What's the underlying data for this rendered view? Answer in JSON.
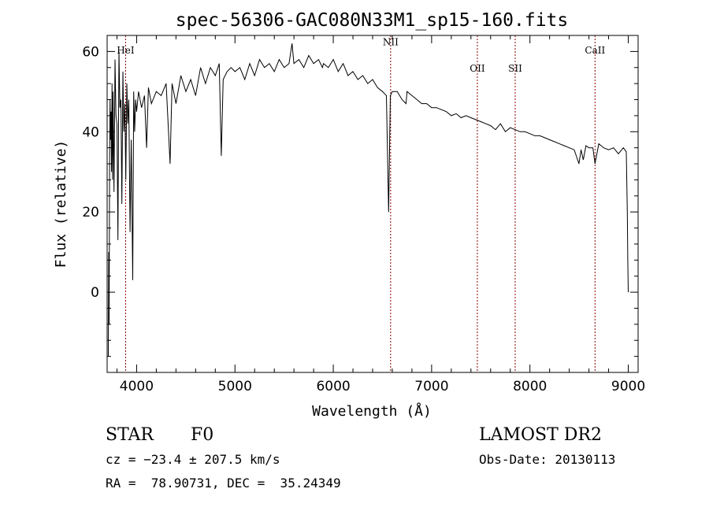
{
  "chart_data": {
    "type": "line",
    "title": "spec-56306-GAC080N33M1_sp15-160.fits",
    "xlabel": "Wavelength (Å)",
    "ylabel": "Flux (relative)",
    "xlim": [
      3700,
      9100
    ],
    "ylim": [
      -20,
      64
    ],
    "xticks": [
      4000,
      5000,
      6000,
      7000,
      8000,
      9000
    ],
    "yticks": [
      0,
      20,
      40,
      60
    ],
    "grid": false,
    "line_color": "#000000",
    "marker_color": "#8b0000",
    "spectral_lines": [
      {
        "name": "HeI",
        "wavelength": 3888,
        "label_flux": 59.5
      },
      {
        "name": "NII",
        "wavelength": 6583,
        "label_flux": 61.5
      },
      {
        "name": "OII",
        "wavelength": 7465,
        "label_flux": 55
      },
      {
        "name": "SII",
        "wavelength": 7850,
        "label_flux": 55
      },
      {
        "name": "CaII",
        "wavelength": 8662,
        "label_flux": 59.5
      }
    ],
    "series": [
      {
        "name": "flux",
        "x": [
          3712,
          3716,
          3720,
          3725,
          3730,
          3735,
          3740,
          3745,
          3750,
          3755,
          3760,
          3770,
          3780,
          3790,
          3800,
          3810,
          3820,
          3830,
          3840,
          3850,
          3860,
          3870,
          3880,
          3890,
          3900,
          3910,
          3920,
          3933,
          3945,
          3960,
          3970,
          3980,
          3990,
          4000,
          4020,
          4050,
          4080,
          4101,
          4120,
          4150,
          4200,
          4250,
          4300,
          4340,
          4360,
          4400,
          4450,
          4500,
          4550,
          4600,
          4650,
          4700,
          4750,
          4800,
          4840,
          4861,
          4880,
          4920,
          4960,
          5000,
          5050,
          5100,
          5150,
          5200,
          5250,
          5300,
          5350,
          5400,
          5450,
          5500,
          5550,
          5580,
          5600,
          5650,
          5700,
          5750,
          5800,
          5850,
          5890,
          5900,
          5950,
          6000,
          6050,
          6100,
          6150,
          6200,
          6250,
          6300,
          6350,
          6400,
          6450,
          6500,
          6540,
          6563,
          6580,
          6600,
          6650,
          6700,
          6740,
          6750,
          6800,
          6850,
          6900,
          6950,
          7000,
          7050,
          7100,
          7150,
          7200,
          7250,
          7300,
          7350,
          7400,
          7450,
          7500,
          7550,
          7600,
          7650,
          7700,
          7750,
          7800,
          7850,
          7900,
          7950,
          8000,
          8050,
          8100,
          8150,
          8200,
          8250,
          8300,
          8350,
          8400,
          8450,
          8498,
          8520,
          8542,
          8570,
          8600,
          8640,
          8662,
          8700,
          8750,
          8800,
          8850,
          8900,
          8950,
          8980,
          8990,
          8995,
          9000
        ],
        "values": [
          -16,
          10,
          -8,
          30,
          48,
          38,
          45,
          30,
          52,
          28,
          50,
          25,
          58,
          44,
          42,
          13,
          60,
          46,
          48,
          22,
          55,
          40,
          47,
          28,
          52,
          42,
          48,
          15,
          38,
          3,
          50,
          40,
          48,
          45,
          50,
          46,
          49,
          36,
          51,
          47,
          50,
          49,
          52,
          32,
          52,
          47,
          54,
          50,
          53,
          49,
          56,
          52,
          56,
          54,
          57,
          34,
          53,
          55,
          56,
          55,
          56,
          53,
          57,
          54,
          58,
          56,
          57,
          55,
          58,
          56,
          57,
          62,
          57,
          58,
          56,
          59,
          57,
          58,
          56,
          57,
          56,
          58,
          55,
          57,
          54,
          55,
          53,
          54,
          52,
          53,
          51,
          50,
          49,
          20,
          49,
          50,
          50,
          48,
          47,
          50,
          49,
          48,
          47,
          47,
          46,
          46,
          45.5,
          45,
          44,
          44.5,
          43.5,
          44,
          43.5,
          43,
          42.5,
          42,
          41.5,
          40.5,
          42,
          40,
          41,
          40.5,
          40,
          40,
          39.5,
          39,
          39,
          38.5,
          38,
          37.5,
          37,
          36.5,
          36,
          35.5,
          32,
          35.5,
          33,
          36.5,
          36,
          36,
          32,
          37,
          36,
          35.5,
          36,
          34.5,
          36,
          35,
          20,
          8,
          0
        ]
      }
    ]
  },
  "info": {
    "object_class": "STAR",
    "subclass": "F0",
    "survey": "LAMOST DR2",
    "cz": "cz = −23.4 ± 207.5 km/s",
    "obs_date": "Obs-Date: 20130113",
    "coords": "RA =  78.90731, DEC =  35.24349"
  }
}
